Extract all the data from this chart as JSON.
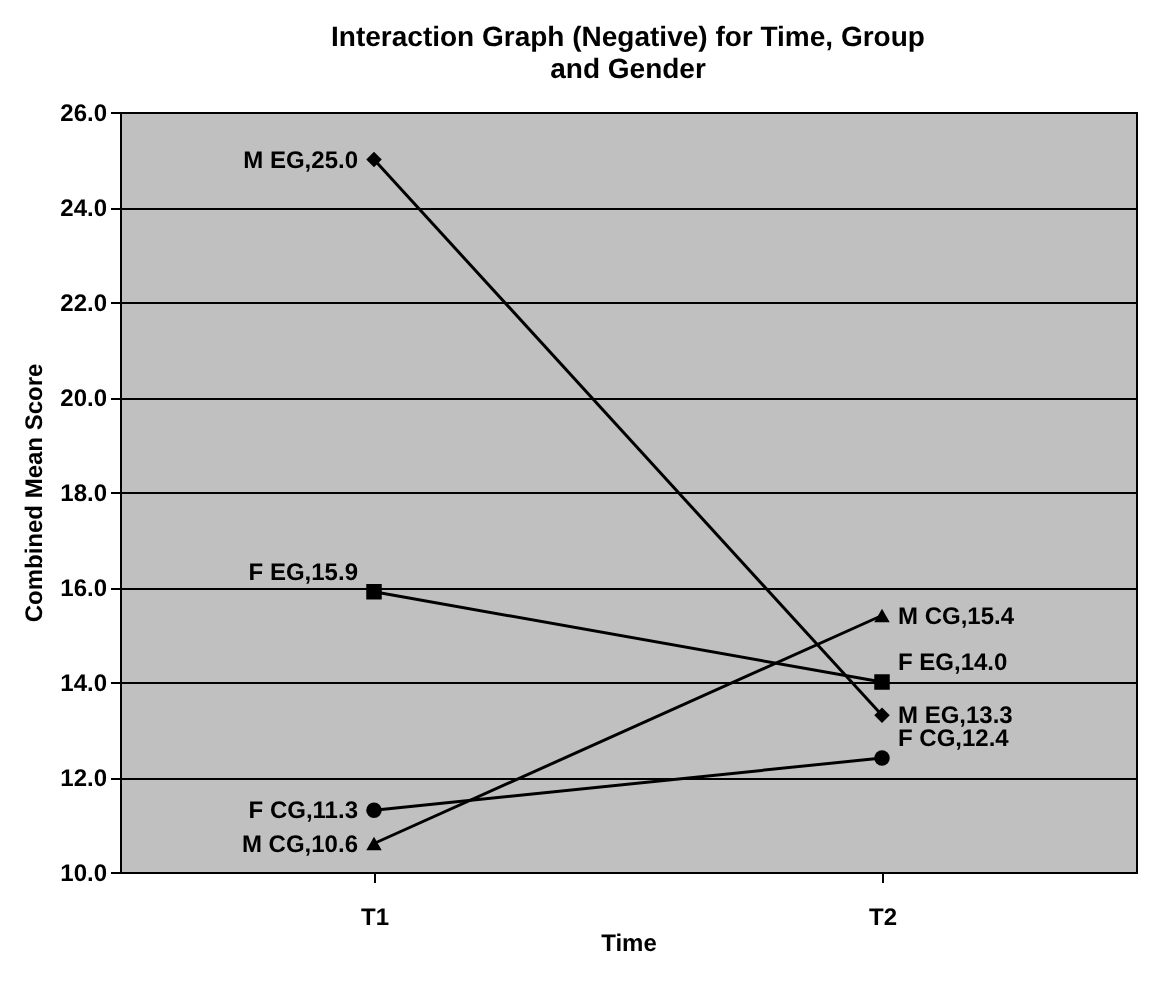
{
  "chart_data": {
    "type": "line",
    "title": "Interaction Graph (Negative) for Time, Group and Gender",
    "xlabel": "Time",
    "ylabel": "Combined Mean Score",
    "categories": [
      "T1",
      "T2"
    ],
    "series": [
      {
        "color": "#000000",
        "marker": "diamond",
        "values": [
          25.0,
          13.3
        ],
        "value_labels": [
          "M EG,25.0",
          "M EG,13.3"
        ]
      },
      {
        "color": "#000000",
        "marker": "square",
        "values": [
          15.9,
          14.0
        ],
        "value_labels": [
          "F EG,15.9",
          "F EG,14.0"
        ]
      },
      {
        "color": "#000000",
        "marker": "circle",
        "values": [
          11.3,
          12.4
        ],
        "value_labels": [
          "F CG,11.3",
          "F CG,12.4"
        ]
      },
      {
        "color": "#000000",
        "marker": "triangle",
        "values": [
          10.6,
          15.4
        ],
        "value_labels": [
          "M CG,10.6",
          "M CG,15.4"
        ]
      }
    ],
    "ylim": [
      10,
      26
    ],
    "yticks": [
      {
        "value": 10,
        "label": "10.0"
      },
      {
        "value": 12,
        "label": "12.0"
      },
      {
        "value": 14,
        "label": "14.0"
      },
      {
        "value": 16,
        "label": "16.0"
      },
      {
        "value": 18,
        "label": "18.0"
      },
      {
        "value": 20,
        "label": "20.0"
      },
      {
        "value": 22,
        "label": "22.0"
      },
      {
        "value": 24,
        "label": "24.0"
      },
      {
        "value": 26,
        "label": "26.0"
      }
    ],
    "grid": "y",
    "legend": false,
    "line_style": "solid"
  }
}
